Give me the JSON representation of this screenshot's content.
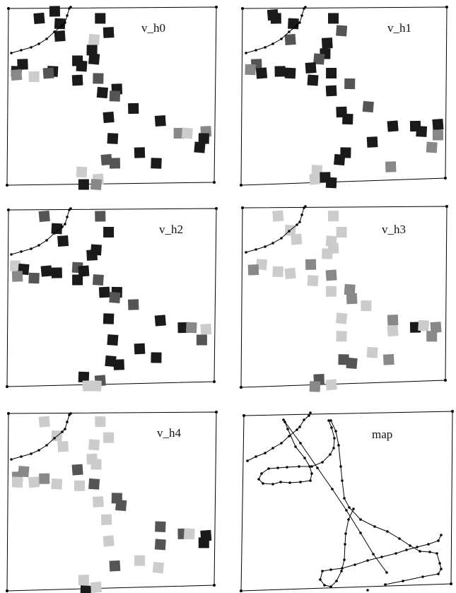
{
  "panels": [
    {
      "id": "v_h0",
      "title": "v_h0",
      "squares": [
        [
          "#1a1a1a",
          0.155,
          0.04
        ],
        [
          "#1a1a1a",
          0.23,
          0.0
        ],
        [
          "#1a1a1a",
          0.255,
          0.07
        ],
        [
          "#1a1a1a",
          0.255,
          0.14
        ],
        [
          "#1a1a1a",
          0.45,
          0.04
        ],
        [
          "#cccccc",
          0.42,
          0.16
        ],
        [
          "#1a1a1a",
          0.49,
          0.12
        ],
        [
          "#1a1a1a",
          0.41,
          0.22
        ],
        [
          "#1a1a1a",
          0.42,
          0.27
        ],
        [
          "#1a1a1a",
          0.075,
          0.3
        ],
        [
          "#1a1a1a",
          0.045,
          0.34
        ],
        [
          "#888888",
          0.045,
          0.36
        ],
        [
          "#cccccc",
          0.13,
          0.37
        ],
        [
          "#1a1a1a",
          0.22,
          0.34
        ],
        [
          "#555555",
          0.2,
          0.35
        ],
        [
          "#1a1a1a",
          0.34,
          0.28
        ],
        [
          "#1a1a1a",
          0.36,
          0.31
        ],
        [
          "#1a1a1a",
          0.34,
          0.39
        ],
        [
          "#555555",
          0.44,
          0.38
        ],
        [
          "#1a1a1a",
          0.46,
          0.46
        ],
        [
          "#1a1a1a",
          0.53,
          0.44
        ],
        [
          "#555555",
          0.52,
          0.48
        ],
        [
          "#1a1a1a",
          0.49,
          0.6
        ],
        [
          "#1a1a1a",
          0.61,
          0.55
        ],
        [
          "#1a1a1a",
          0.51,
          0.72
        ],
        [
          "#1a1a1a",
          0.74,
          0.62
        ],
        [
          "#888888",
          0.83,
          0.69
        ],
        [
          "#cccccc",
          0.87,
          0.69
        ],
        [
          "#888888",
          0.96,
          0.68
        ],
        [
          "#1a1a1a",
          0.95,
          0.72
        ],
        [
          "#1a1a1a",
          0.93,
          0.77
        ],
        [
          "#1a1a1a",
          0.64,
          0.8
        ],
        [
          "#1a1a1a",
          0.72,
          0.86
        ],
        [
          "#555555",
          0.48,
          0.84
        ],
        [
          "#555555",
          0.52,
          0.86
        ],
        [
          "#cccccc",
          0.36,
          0.91
        ],
        [
          "#cccccc",
          0.44,
          0.95
        ],
        [
          "#1a1a1a",
          0.37,
          0.98
        ],
        [
          "#888888",
          0.43,
          0.98
        ]
      ]
    },
    {
      "id": "v_h1",
      "title": "v_h1",
      "squares": [
        [
          "#1a1a1a",
          0.155,
          0.02
        ],
        [
          "#1a1a1a",
          0.17,
          0.04
        ],
        [
          "#1a1a1a",
          0.255,
          0.07
        ],
        [
          "#555555",
          0.24,
          0.16
        ],
        [
          "#1a1a1a",
          0.45,
          0.04
        ],
        [
          "#555555",
          0.49,
          0.11
        ],
        [
          "#1a1a1a",
          0.42,
          0.18
        ],
        [
          "#1a1a1a",
          0.41,
          0.24
        ],
        [
          "#555555",
          0.38,
          0.27
        ],
        [
          "#555555",
          0.075,
          0.3
        ],
        [
          "#888888",
          0.045,
          0.33
        ],
        [
          "#1a1a1a",
          0.1,
          0.35
        ],
        [
          "#1a1a1a",
          0.19,
          0.34
        ],
        [
          "#1a1a1a",
          0.24,
          0.35
        ],
        [
          "#1a1a1a",
          0.34,
          0.32
        ],
        [
          "#1a1a1a",
          0.44,
          0.35
        ],
        [
          "#1a1a1a",
          0.35,
          0.39
        ],
        [
          "#1a1a1a",
          0.44,
          0.45
        ],
        [
          "#555555",
          0.53,
          0.41
        ],
        [
          "#555555",
          0.62,
          0.54
        ],
        [
          "#1a1a1a",
          0.49,
          0.57
        ],
        [
          "#1a1a1a",
          0.52,
          0.61
        ],
        [
          "#1a1a1a",
          0.74,
          0.65
        ],
        [
          "#1a1a1a",
          0.85,
          0.65
        ],
        [
          "#1a1a1a",
          0.88,
          0.68
        ],
        [
          "#1a1a1a",
          0.96,
          0.64
        ],
        [
          "#888888",
          0.96,
          0.7
        ],
        [
          "#888888",
          0.93,
          0.77
        ],
        [
          "#1a1a1a",
          0.64,
          0.74
        ],
        [
          "#1a1a1a",
          0.51,
          0.8
        ],
        [
          "#1a1a1a",
          0.48,
          0.84
        ],
        [
          "#888888",
          0.73,
          0.88
        ],
        [
          "#cccccc",
          0.37,
          0.9
        ],
        [
          "#cccccc",
          0.36,
          0.95
        ],
        [
          "#1a1a1a",
          0.41,
          0.94
        ],
        [
          "#1a1a1a",
          0.44,
          0.97
        ]
      ]
    },
    {
      "id": "v_h2",
      "title": "v_h2",
      "squares": [
        [
          "#555555",
          0.18,
          0.02
        ],
        [
          "#555555",
          0.45,
          0.02
        ],
        [
          "#1a1a1a",
          0.24,
          0.09
        ],
        [
          "#1a1a1a",
          0.27,
          0.16
        ],
        [
          "#1a1a1a",
          0.49,
          0.11
        ],
        [
          "#1a1a1a",
          0.43,
          0.21
        ],
        [
          "#1a1a1a",
          0.41,
          0.24
        ],
        [
          "#cccccc",
          0.04,
          0.3
        ],
        [
          "#1a1a1a",
          0.08,
          0.32
        ],
        [
          "#888888",
          0.05,
          0.36
        ],
        [
          "#555555",
          0.13,
          0.37
        ],
        [
          "#1a1a1a",
          0.19,
          0.33
        ],
        [
          "#1a1a1a",
          0.24,
          0.34
        ],
        [
          "#555555",
          0.34,
          0.31
        ],
        [
          "#1a1a1a",
          0.37,
          0.33
        ],
        [
          "#1a1a1a",
          0.34,
          0.38
        ],
        [
          "#555555",
          0.44,
          0.38
        ],
        [
          "#1a1a1a",
          0.47,
          0.45
        ],
        [
          "#1a1a1a",
          0.53,
          0.45
        ],
        [
          "#555555",
          0.52,
          0.48
        ],
        [
          "#555555",
          0.61,
          0.52
        ],
        [
          "#1a1a1a",
          0.49,
          0.6
        ],
        [
          "#1a1a1a",
          0.74,
          0.61
        ],
        [
          "#1a1a1a",
          0.85,
          0.65
        ],
        [
          "#888888",
          0.89,
          0.65
        ],
        [
          "#cccccc",
          0.96,
          0.66
        ],
        [
          "#555555",
          0.94,
          0.72
        ],
        [
          "#1a1a1a",
          0.51,
          0.72
        ],
        [
          "#1a1a1a",
          0.64,
          0.77
        ],
        [
          "#1a1a1a",
          0.72,
          0.82
        ],
        [
          "#1a1a1a",
          0.5,
          0.84
        ],
        [
          "#1a1a1a",
          0.54,
          0.86
        ],
        [
          "#1a1a1a",
          0.37,
          0.93
        ],
        [
          "#555555",
          0.45,
          0.95
        ],
        [
          "#cccccc",
          0.39,
          0.98
        ],
        [
          "#cccccc",
          0.43,
          0.98
        ]
      ]
    },
    {
      "id": "v_h3",
      "title": "v_h3",
      "squares": [
        [
          "#cccccc",
          0.18,
          0.03
        ],
        [
          "#cccccc",
          0.45,
          0.03
        ],
        [
          "#cccccc",
          0.24,
          0.11
        ],
        [
          "#cccccc",
          0.27,
          0.16
        ],
        [
          "#cccccc",
          0.49,
          0.12
        ],
        [
          "#cccccc",
          0.44,
          0.17
        ],
        [
          "#cccccc",
          0.45,
          0.21
        ],
        [
          "#cccccc",
          0.42,
          0.24
        ],
        [
          "#cccccc",
          0.1,
          0.3
        ],
        [
          "#888888",
          0.06,
          0.33
        ],
        [
          "#cccccc",
          0.18,
          0.34
        ],
        [
          "#cccccc",
          0.24,
          0.35
        ],
        [
          "#888888",
          0.34,
          0.3
        ],
        [
          "#cccccc",
          0.35,
          0.39
        ],
        [
          "#888888",
          0.44,
          0.36
        ],
        [
          "#cccccc",
          0.44,
          0.45
        ],
        [
          "#888888",
          0.53,
          0.44
        ],
        [
          "#888888",
          0.54,
          0.49
        ],
        [
          "#cccccc",
          0.61,
          0.53
        ],
        [
          "#cccccc",
          0.49,
          0.6
        ],
        [
          "#888888",
          0.74,
          0.61
        ],
        [
          "#cccccc",
          0.49,
          0.7
        ],
        [
          "#cccccc",
          0.74,
          0.67
        ],
        [
          "#1a1a1a",
          0.85,
          0.65
        ],
        [
          "#cccccc",
          0.89,
          0.64
        ],
        [
          "#888888",
          0.95,
          0.65
        ],
        [
          "#888888",
          0.93,
          0.7
        ],
        [
          "#cccccc",
          0.64,
          0.79
        ],
        [
          "#888888",
          0.72,
          0.83
        ],
        [
          "#555555",
          0.5,
          0.83
        ],
        [
          "#555555",
          0.54,
          0.85
        ],
        [
          "#555555",
          0.38,
          0.94
        ],
        [
          "#888888",
          0.36,
          0.98
        ],
        [
          "#cccccc",
          0.44,
          0.97
        ]
      ]
    },
    {
      "id": "v_h4",
      "title": "v_h4",
      "squares": [
        [
          "#cccccc",
          0.18,
          0.03
        ],
        [
          "#cccccc",
          0.45,
          0.03
        ],
        [
          "#cccccc",
          0.24,
          0.11
        ],
        [
          "#cccccc",
          0.27,
          0.17
        ],
        [
          "#cccccc",
          0.49,
          0.12
        ],
        [
          "#cccccc",
          0.42,
          0.16
        ],
        [
          "#cccccc",
          0.41,
          0.24
        ],
        [
          "#cccccc",
          0.43,
          0.27
        ],
        [
          "#888888",
          0.08,
          0.31
        ],
        [
          "#888888",
          0.05,
          0.34
        ],
        [
          "#cccccc",
          0.05,
          0.37
        ],
        [
          "#cccccc",
          0.13,
          0.37
        ],
        [
          "#888888",
          0.18,
          0.35
        ],
        [
          "#cccccc",
          0.24,
          0.38
        ],
        [
          "#555555",
          0.34,
          0.3
        ],
        [
          "#cccccc",
          0.35,
          0.39
        ],
        [
          "#555555",
          0.42,
          0.38
        ],
        [
          "#cccccc",
          0.44,
          0.48
        ],
        [
          "#555555",
          0.53,
          0.46
        ],
        [
          "#555555",
          0.55,
          0.5
        ],
        [
          "#cccccc",
          0.48,
          0.58
        ],
        [
          "#555555",
          0.74,
          0.62
        ],
        [
          "#cccccc",
          0.49,
          0.7
        ],
        [
          "#555555",
          0.85,
          0.66
        ],
        [
          "#cccccc",
          0.88,
          0.66
        ],
        [
          "#1a1a1a",
          0.96,
          0.67
        ],
        [
          "#1a1a1a",
          0.95,
          0.71
        ],
        [
          "#555555",
          0.74,
          0.72
        ],
        [
          "#555555",
          0.52,
          0.84
        ],
        [
          "#cccccc",
          0.64,
          0.81
        ],
        [
          "#cccccc",
          0.73,
          0.85
        ],
        [
          "#cccccc",
          0.37,
          0.92
        ],
        [
          "#1a1a1a",
          0.38,
          0.98
        ],
        [
          "#cccccc",
          0.43,
          0.96
        ]
      ]
    },
    {
      "id": "map",
      "title": "map",
      "squares": []
    }
  ]
}
